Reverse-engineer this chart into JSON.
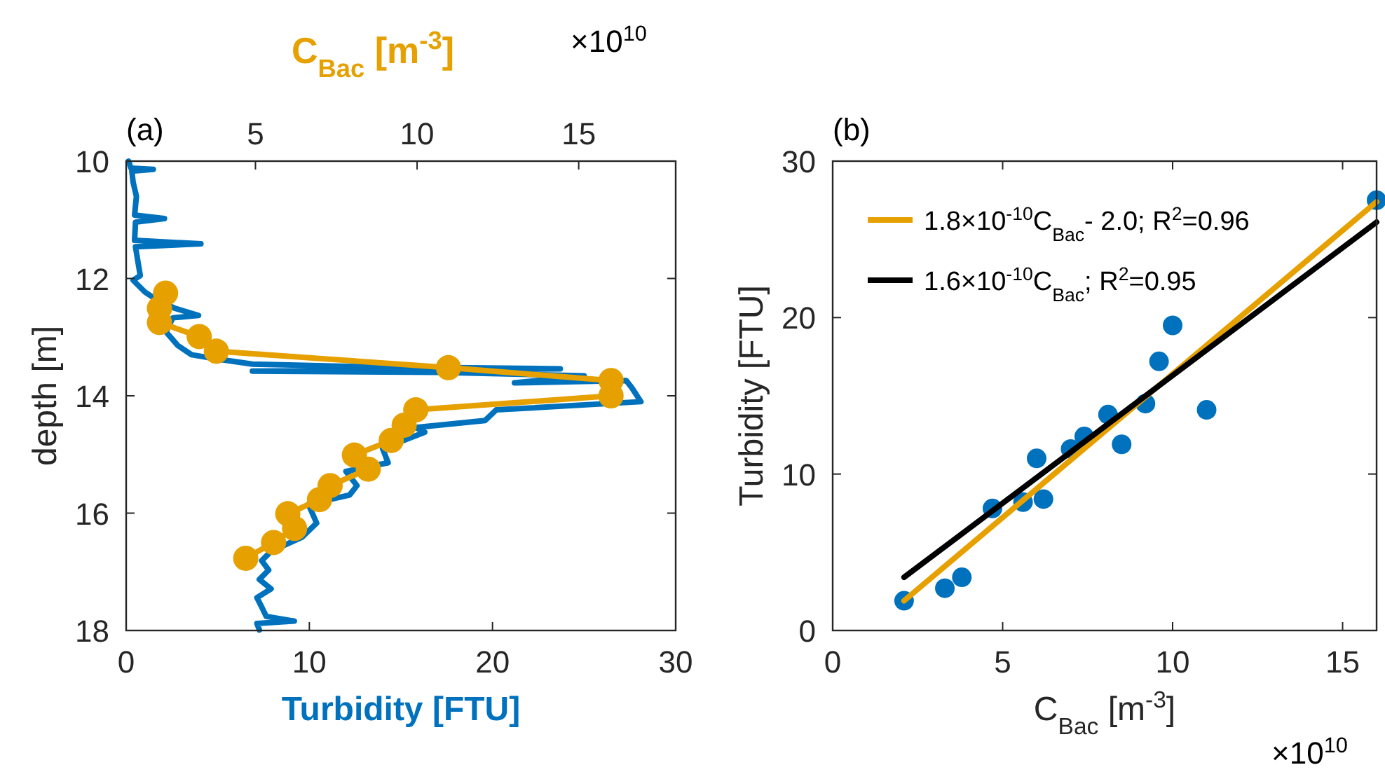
{
  "chart_data": [
    {
      "type": "line",
      "xlabel": "Turbidity [FTU]",
      "ylabel": "depth [m]",
      "x2label": "C$_{Bac}$ [m$^{-3}$]",
      "annotations": [
        "(a)",
        "×10$^{10}$"
      ],
      "xlim": [
        0,
        30
      ],
      "xticks": [
        0,
        10,
        20,
        30
      ],
      "x2lim": [
        1,
        18
      ],
      "x2ticks": [
        5,
        10,
        15
      ],
      "ylim": [
        18,
        10
      ],
      "yticks": [
        10,
        12,
        14,
        16,
        18
      ],
      "grid": false,
      "legend": false,
      "series": [
        {
          "color": "#0072bd",
          "marker": "none",
          "x": [
            0.13,
            0.26,
            1.48,
            0.31,
            0.38,
            0.56,
            0.46,
            2.09,
            0.51,
            0.46,
            4.08,
            0.51,
            0.64,
            0.77,
            0.38,
            1.02,
            1.79,
            2.68,
            3.95,
            2.55,
            2.17,
            2.81,
            3.57,
            5.1,
            6.89,
            12.5,
            23.7,
            6.89,
            17.1,
            25.0,
            21.2,
            27.3,
            27.6,
            28.1,
            20.2,
            19.6,
            15.8,
            16.3,
            14.0,
            14.3,
            12.0,
            12.6,
            12.2,
            9.95,
            10.4,
            9.6,
            7.91,
            7.4,
            7.78,
            7.27,
            7.91,
            7.14,
            7.4,
            7.65,
            9.18,
            7.14,
            7.27
          ],
          "values": [
            10.0,
            10.12,
            10.14,
            10.17,
            10.36,
            10.6,
            10.92,
            10.98,
            11.04,
            11.35,
            11.41,
            11.46,
            11.71,
            11.95,
            12.03,
            12.23,
            12.39,
            12.51,
            12.63,
            12.67,
            12.91,
            13.14,
            13.3,
            13.38,
            13.46,
            13.5,
            13.54,
            13.58,
            13.6,
            13.66,
            13.78,
            13.74,
            13.86,
            14.1,
            14.24,
            14.42,
            14.54,
            14.62,
            14.9,
            15.14,
            15.29,
            15.53,
            15.69,
            15.85,
            16.17,
            16.41,
            16.65,
            16.81,
            16.97,
            17.13,
            17.29,
            17.44,
            17.6,
            17.76,
            17.84,
            17.88,
            17.99
          ]
        },
        {
          "color": "#e6a000",
          "marker": "circle",
          "axis": "x2",
          "x": [
            2.22,
            2.03,
            2.03,
            3.26,
            3.79,
            10.97,
            16.0,
            16.0,
            9.96,
            9.6,
            9.2,
            8.06,
            8.49,
            7.31,
            6.98,
            6.0,
            6.21,
            5.56,
            4.7
          ],
          "values": [
            12.25,
            12.51,
            12.75,
            12.99,
            13.24,
            13.52,
            13.74,
            14.0,
            14.24,
            14.5,
            14.76,
            15.01,
            15.25,
            15.53,
            15.77,
            16.01,
            16.26,
            16.5,
            16.77
          ]
        }
      ]
    },
    {
      "type": "scatter",
      "xlabel": "C$_{Bac}$ [m$^{-3}$]",
      "ylabel": "Turbidity [FTU]",
      "annotations": [
        "(b)",
        "×10$^{10}$"
      ],
      "xlim": [
        0,
        16
      ],
      "xticks": [
        0,
        5,
        10,
        15
      ],
      "ylim": [
        0,
        30
      ],
      "yticks": [
        0,
        10,
        20,
        30
      ],
      "grid": false,
      "legend": "top left",
      "series": [
        {
          "color": "#0072bd",
          "marker": "circle",
          "x": [
            2.1,
            3.3,
            3.8,
            4.7,
            5.6,
            6.2,
            6.0,
            7.0,
            7.4,
            8.1,
            8.5,
            9.2,
            9.6,
            10.0,
            11.0,
            16.0
          ],
          "values": [
            1.9,
            2.7,
            3.4,
            7.8,
            8.2,
            8.4,
            11.0,
            11.6,
            12.4,
            13.8,
            11.9,
            14.5,
            17.2,
            19.5,
            14.1,
            27.5
          ]
        },
        {
          "type": "line",
          "name": "1.8×10$^{-10}$C$_{Bac}$- 2.0; R$^{2}$=0.96",
          "color": "#e6a000",
          "marker": "none",
          "x": [
            2.1,
            16
          ],
          "values": [
            1.9,
            27.4
          ]
        },
        {
          "type": "line",
          "name": "1.6×10$^{-10}$C$_{Bac}$; R$^{2}$=0.95",
          "color": "#000000",
          "marker": "none",
          "x": [
            2.1,
            16
          ],
          "values": [
            3.4,
            26.1
          ]
        }
      ]
    }
  ]
}
